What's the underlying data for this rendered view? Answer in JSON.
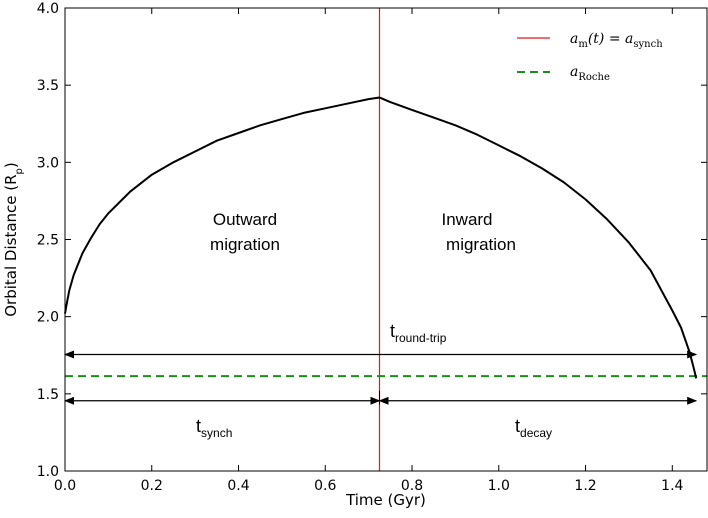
{
  "chart_data": {
    "type": "line",
    "xlabel": "Time (Gyr)",
    "ylabel": "Orbital Distance (R",
    "ylabel_sub": "p",
    "ylabel_close": ")",
    "xlim": [
      0.0,
      1.48
    ],
    "ylim": [
      1.0,
      4.0
    ],
    "xticks": [
      0.0,
      0.2,
      0.4,
      0.6,
      0.8,
      1.0,
      1.2,
      1.4
    ],
    "xtick_labels": [
      "0.0",
      "0.2",
      "0.4",
      "0.6",
      "0.8",
      "1.0",
      "1.2",
      "1.4"
    ],
    "yticks": [
      1.0,
      1.5,
      2.0,
      2.5,
      3.0,
      3.5,
      4.0
    ],
    "ytick_labels": [
      "1.0",
      "1.5",
      "2.0",
      "2.5",
      "3.0",
      "3.5",
      "4.0"
    ],
    "grid": false,
    "legend_position": "top-right",
    "series": [
      {
        "name": "orbital-distance",
        "color": "#000000",
        "x": [
          0.0,
          0.005,
          0.01,
          0.02,
          0.04,
          0.06,
          0.08,
          0.1,
          0.15,
          0.2,
          0.25,
          0.3,
          0.35,
          0.4,
          0.45,
          0.5,
          0.55,
          0.6,
          0.65,
          0.7,
          0.725,
          0.75,
          0.8,
          0.85,
          0.9,
          0.95,
          1.0,
          1.05,
          1.1,
          1.15,
          1.2,
          1.25,
          1.3,
          1.35,
          1.4,
          1.42,
          1.44,
          1.45,
          1.455
        ],
        "y": [
          2.02,
          2.1,
          2.17,
          2.27,
          2.41,
          2.51,
          2.6,
          2.67,
          2.81,
          2.92,
          3.0,
          3.07,
          3.14,
          3.19,
          3.24,
          3.28,
          3.32,
          3.35,
          3.38,
          3.41,
          3.42,
          3.39,
          3.34,
          3.29,
          3.24,
          3.18,
          3.11,
          3.04,
          2.96,
          2.87,
          2.76,
          2.63,
          2.48,
          2.3,
          2.04,
          1.93,
          1.77,
          1.66,
          1.6
        ]
      }
    ],
    "reference_lines": [
      {
        "name": "synch",
        "orientation": "vertical",
        "x": 0.725,
        "color": "#e8141c",
        "style": "solid"
      },
      {
        "name": "roche",
        "orientation": "horizontal",
        "y": 1.615,
        "color": "#1a8f1a",
        "style": "dashed"
      }
    ],
    "legend": [
      {
        "main": "a",
        "sub": "m",
        "rest": "(t) = a",
        "sub2": "synch",
        "color": "#e8141c",
        "style": "solid"
      },
      {
        "main": "a",
        "sub": "Roche",
        "rest": "",
        "sub2": "",
        "color": "#1a8f1a",
        "style": "dashed"
      }
    ],
    "annotations": {
      "outward_line1": "Outward",
      "outward_line2": "migration",
      "inward_line1": "Inward",
      "inward_line2": "migration",
      "t_round_main": "t",
      "t_round_sub": "round-trip",
      "t_synch_main": "t",
      "t_synch_sub": "synch",
      "t_decay_main": "t",
      "t_decay_sub": "decay"
    },
    "intervals": [
      {
        "name": "round-trip",
        "x0": 0.0,
        "x1": 1.455,
        "y": 1.755
      },
      {
        "name": "synch",
        "x0": 0.0,
        "x1": 0.725,
        "y": 1.455
      },
      {
        "name": "decay",
        "x0": 0.725,
        "x1": 1.455,
        "y": 1.455
      }
    ]
  }
}
